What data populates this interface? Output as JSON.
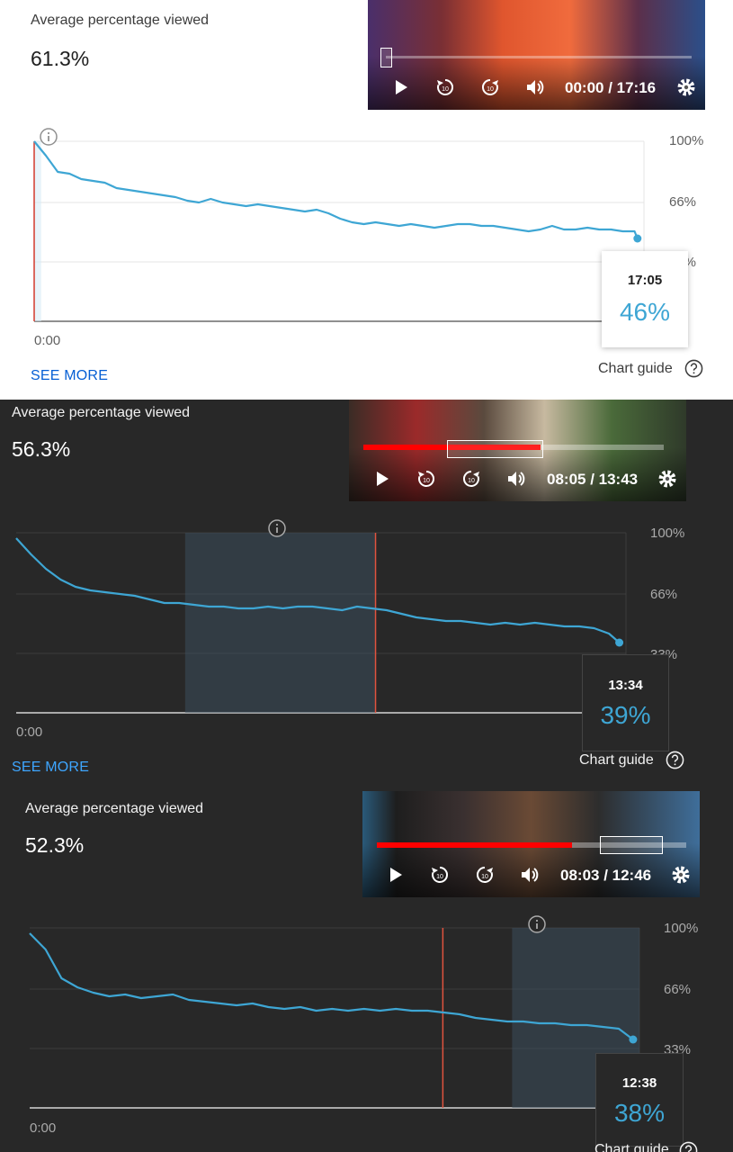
{
  "panels": [
    {
      "label": "Average percentage viewed",
      "value": "61.3%",
      "player": {
        "time": "00:00 / 17:16",
        "progress": 0.0
      },
      "chart": {
        "y_ticks": [
          "100%",
          "66%",
          "33%"
        ],
        "x_start": "0:00"
      },
      "tooltip": {
        "time": "17:05",
        "pct": "46%"
      },
      "see_more": "SEE MORE",
      "chart_guide": "Chart guide"
    },
    {
      "label": "Average percentage viewed",
      "value": "56.3%",
      "player": {
        "time": "08:05 / 13:43",
        "progress": 0.59
      },
      "chart": {
        "y_ticks": [
          "100%",
          "66%",
          "33%"
        ],
        "x_start": "0:00"
      },
      "tooltip": {
        "time": "13:34",
        "pct": "39%"
      },
      "see_more": "SEE MORE",
      "chart_guide": "Chart guide"
    },
    {
      "label": "Average percentage viewed",
      "value": "52.3%",
      "player": {
        "time": "08:03 / 12:46",
        "progress": 0.63
      },
      "chart": {
        "y_ticks": [
          "100%",
          "66%",
          "33%"
        ],
        "x_start": "0:00"
      },
      "tooltip": {
        "time": "12:38",
        "pct": "38%"
      },
      "chart_guide": "Chart guide"
    }
  ],
  "chart_data": [
    {
      "type": "line",
      "title": "",
      "xlabel": "",
      "ylabel": "",
      "x_unit": "seconds",
      "xlim": [
        0,
        1036
      ],
      "ylim": [
        0,
        100
      ],
      "y_ticks": [
        33,
        66,
        100
      ],
      "color": "#3ea6d4",
      "x": [
        0,
        20,
        40,
        60,
        80,
        100,
        120,
        140,
        160,
        180,
        200,
        220,
        240,
        260,
        280,
        300,
        320,
        340,
        360,
        380,
        400,
        420,
        440,
        460,
        480,
        500,
        520,
        540,
        560,
        580,
        600,
        620,
        640,
        660,
        680,
        700,
        720,
        740,
        760,
        780,
        800,
        820,
        840,
        860,
        880,
        900,
        920,
        940,
        960,
        980,
        1000,
        1020,
        1025
      ],
      "y": [
        100,
        92,
        83,
        82,
        79,
        78,
        77,
        74,
        73,
        72,
        71,
        70,
        69,
        67,
        66,
        68,
        66,
        65,
        64,
        65,
        64,
        63,
        62,
        61,
        62,
        60,
        57,
        55,
        54,
        55,
        54,
        53,
        54,
        53,
        52,
        53,
        54,
        54,
        53,
        53,
        52,
        51,
        50,
        51,
        53,
        51,
        51,
        52,
        51,
        51,
        50,
        50,
        46
      ],
      "highlight_x": [
        0,
        12
      ],
      "playhead_x": 0,
      "marker": {
        "x": 1025,
        "y": 46
      }
    },
    {
      "type": "line",
      "title": "",
      "xlabel": "",
      "ylabel": "",
      "x_unit": "seconds",
      "xlim": [
        0,
        823
      ],
      "ylim": [
        0,
        100
      ],
      "y_ticks": [
        33,
        66,
        100
      ],
      "color": "#3ea6d4",
      "x": [
        0,
        20,
        40,
        60,
        80,
        100,
        120,
        140,
        160,
        180,
        200,
        220,
        240,
        260,
        280,
        300,
        320,
        340,
        360,
        380,
        400,
        420,
        440,
        460,
        480,
        500,
        520,
        540,
        560,
        580,
        600,
        620,
        640,
        660,
        680,
        700,
        720,
        740,
        760,
        780,
        800,
        814
      ],
      "y": [
        97,
        88,
        80,
        74,
        70,
        68,
        67,
        66,
        65,
        63,
        61,
        61,
        60,
        59,
        59,
        58,
        58,
        59,
        58,
        59,
        59,
        58,
        57,
        59,
        58,
        57,
        55,
        53,
        52,
        51,
        51,
        50,
        49,
        50,
        49,
        50,
        49,
        48,
        48,
        47,
        44,
        39
      ],
      "highlight_x": [
        228,
        485
      ],
      "playhead_x": 485,
      "marker": {
        "x": 814,
        "y": 39
      }
    },
    {
      "type": "line",
      "title": "",
      "xlabel": "",
      "ylabel": "",
      "x_unit": "seconds",
      "xlim": [
        0,
        766
      ],
      "ylim": [
        0,
        100
      ],
      "y_ticks": [
        33,
        66,
        100
      ],
      "color": "#3ea6d4",
      "x": [
        0,
        20,
        40,
        60,
        80,
        100,
        120,
        140,
        160,
        180,
        200,
        220,
        240,
        260,
        280,
        300,
        320,
        340,
        360,
        380,
        400,
        420,
        440,
        460,
        480,
        500,
        520,
        540,
        560,
        580,
        600,
        620,
        640,
        660,
        680,
        700,
        720,
        740,
        758
      ],
      "y": [
        97,
        88,
        72,
        67,
        64,
        62,
        63,
        61,
        62,
        63,
        60,
        59,
        58,
        57,
        58,
        56,
        55,
        56,
        54,
        55,
        54,
        55,
        54,
        55,
        54,
        54,
        53,
        52,
        50,
        49,
        48,
        48,
        47,
        47,
        46,
        46,
        45,
        44,
        38
      ],
      "highlight_x": [
        606,
        766
      ],
      "playhead_x": 519,
      "marker": {
        "x": 758,
        "y": 38
      }
    }
  ]
}
